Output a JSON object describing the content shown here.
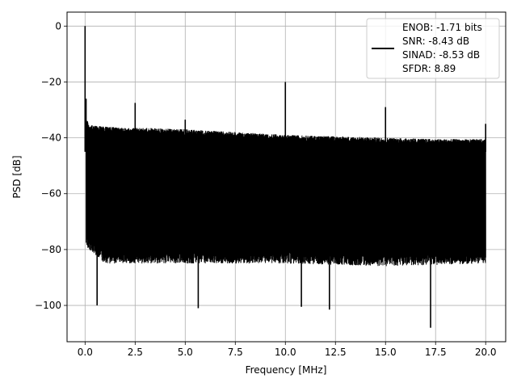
{
  "chart_data": {
    "type": "line",
    "title": "",
    "xlabel": "Frequency [MHz]",
    "ylabel": "PSD [dB]",
    "xlim": [
      -0.9,
      21.0
    ],
    "ylim": [
      -113,
      5
    ],
    "xticks": [
      0.0,
      2.5,
      5.0,
      7.5,
      10.0,
      12.5,
      15.0,
      17.5,
      20.0
    ],
    "xtick_labels": [
      "0.0",
      "2.5",
      "5.0",
      "7.5",
      "10.0",
      "12.5",
      "15.0",
      "17.5",
      "20.0"
    ],
    "yticks": [
      0,
      -20,
      -40,
      -60,
      -80,
      -100
    ],
    "ytick_labels": [
      "0",
      "−20",
      "−40",
      "−60",
      "−80",
      "−100"
    ],
    "grid": true,
    "legend": {
      "placement": "top-right",
      "entries": [
        "ENOB: -1.71 bits",
        "SNR: -8.43 dB",
        "SINAD: -8.53 dB",
        "SFDR: 8.89"
      ]
    },
    "series": [
      {
        "color": "#000000",
        "description": "dense noise floor between upper envelope and lower envelope with spurs",
        "upper_envelope": {
          "x": [
            0.05,
            0.3,
            1.0,
            2.0,
            3.0,
            5.0,
            7.5,
            10.0,
            12.5,
            15.0,
            17.5,
            20.0
          ],
          "y": [
            -35,
            -37,
            -37.5,
            -38,
            -38,
            -38.5,
            -39.5,
            -40.5,
            -41,
            -41.5,
            -42,
            -42
          ]
        },
        "lower_envelope": {
          "x": [
            0.05,
            1.0,
            5.0,
            10.0,
            15.0,
            20.0
          ],
          "y": [
            -74,
            -80,
            -80,
            -80,
            -81,
            -80
          ]
        },
        "spurs": [
          {
            "x": 0.0,
            "y": 0
          },
          {
            "x": 0.05,
            "y": -26
          },
          {
            "x": 2.5,
            "y": -27.5
          },
          {
            "x": 5.0,
            "y": -33.5
          },
          {
            "x": 10.0,
            "y": -20
          },
          {
            "x": 15.0,
            "y": -29
          },
          {
            "x": 20.0,
            "y": -35
          }
        ],
        "dips": [
          {
            "x": 0.6,
            "y": -100
          },
          {
            "x": 5.65,
            "y": -101
          },
          {
            "x": 10.8,
            "y": -100.5
          },
          {
            "x": 12.2,
            "y": -101.5
          },
          {
            "x": 17.25,
            "y": -108
          }
        ]
      }
    ]
  }
}
